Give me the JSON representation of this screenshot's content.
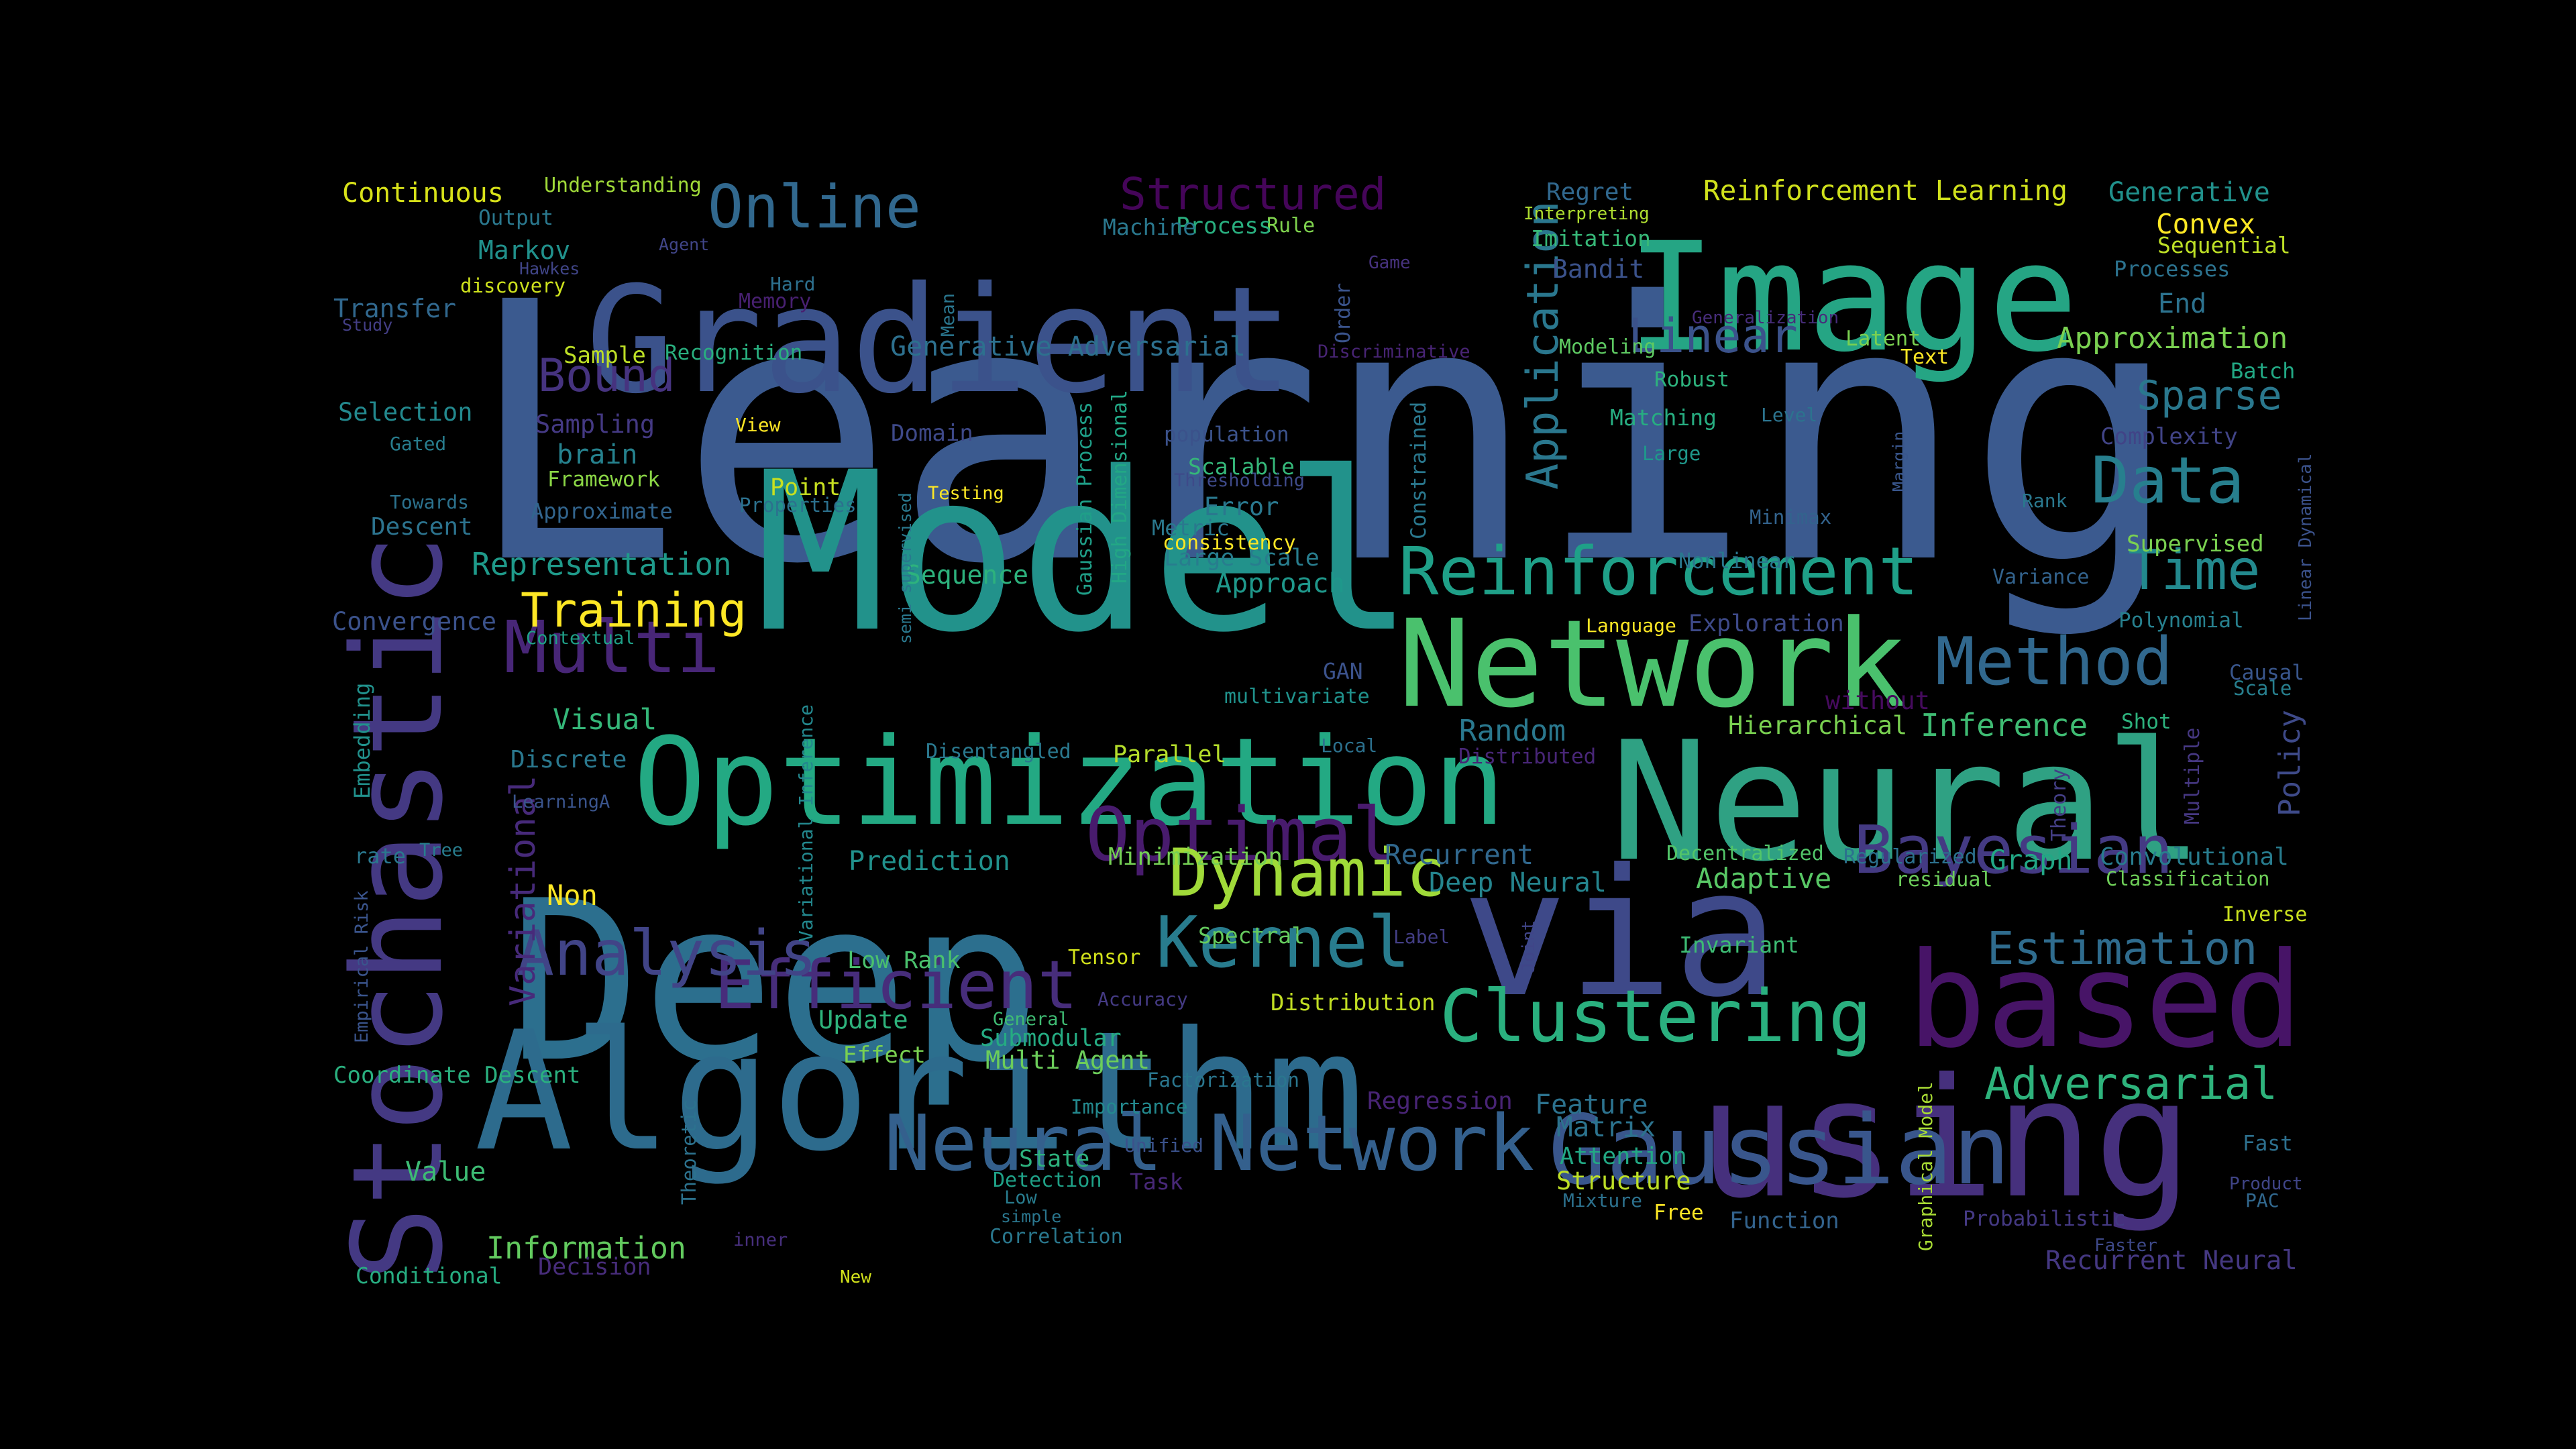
{
  "words": [
    {
      "text": "Learning",
      "color": "#3b5a8f"
    },
    {
      "text": "Model",
      "color": "#22928b"
    },
    {
      "text": "Neural",
      "color": "#2fa183"
    },
    {
      "text": "Deep",
      "color": "#2c6f8e"
    },
    {
      "text": "Algorithm",
      "color": "#2d6b8d"
    },
    {
      "text": "via",
      "color": "#3e4989"
    },
    {
      "text": "Gradient",
      "color": "#3b528b"
    },
    {
      "text": "Image",
      "color": "#25a584"
    },
    {
      "text": "Stochastic",
      "color": "#443983"
    },
    {
      "text": "using",
      "color": "#46307d"
    },
    {
      "text": "based",
      "color": "#471467"
    },
    {
      "text": "Optimization",
      "color": "#23a983"
    },
    {
      "text": "Network",
      "color": "#4ac16d"
    },
    {
      "text": "Gaussian",
      "color": "#39568c"
    },
    {
      "text": "Neural Network",
      "color": "#34608d"
    },
    {
      "text": "Reinforcement",
      "color": "#1fa088"
    },
    {
      "text": "Clustering",
      "color": "#2ab07f"
    },
    {
      "text": "Kernel",
      "color": "#287c8e"
    },
    {
      "text": "Optimal",
      "color": "#481b6d"
    },
    {
      "text": "Efficient",
      "color": "#472d7b"
    },
    {
      "text": "Dynamic",
      "color": "#a0da39"
    },
    {
      "text": "Analysis",
      "color": "#414487"
    },
    {
      "text": "Multi",
      "color": "#482677"
    },
    {
      "text": "Bayesian",
      "color": "#443a83"
    },
    {
      "text": "Data",
      "color": "#277f8e"
    },
    {
      "text": "Method",
      "color": "#31688e"
    },
    {
      "text": "Time",
      "color": "#23898e"
    },
    {
      "text": "Structured",
      "color": "#450559"
    },
    {
      "text": "Online",
      "color": "#31688e"
    },
    {
      "text": "Linear",
      "color": "#3b528b"
    },
    {
      "text": "Application",
      "color": "#2a778e"
    },
    {
      "text": "Adversarial",
      "color": "#2eb37c"
    },
    {
      "text": "Estimation",
      "color": "#2f6c8e"
    },
    {
      "text": "Sparse",
      "color": "#2a788e"
    },
    {
      "text": "Training",
      "color": "#fde725"
    },
    {
      "text": "Bound",
      "color": "#46337f"
    },
    {
      "text": "Variational",
      "color": "#472a7a"
    },
    {
      "text": "Continuous",
      "color": "#d8e219"
    },
    {
      "text": "Reinforcement Learning",
      "color": "#d0e11c"
    },
    {
      "text": "Generative",
      "color": "#21918c"
    },
    {
      "text": "Convex",
      "color": "#fde725"
    },
    {
      "text": "Sequential",
      "color": "#bddf26"
    },
    {
      "text": "Processes",
      "color": "#2c728e"
    },
    {
      "text": "End",
      "color": "#2c728e"
    },
    {
      "text": "Approximation",
      "color": "#7ad151"
    },
    {
      "text": "Batch",
      "color": "#22a884"
    },
    {
      "text": "Complexity",
      "color": "#414487"
    },
    {
      "text": "Generative Adversarial",
      "color": "#2d708e"
    },
    {
      "text": "Representation",
      "color": "#1f9a8a"
    },
    {
      "text": "Convergence",
      "color": "#3b528b"
    },
    {
      "text": "Visual",
      "color": "#35b779"
    },
    {
      "text": "Discrete",
      "color": "#2a788e"
    },
    {
      "text": "Embedding",
      "color": "#21918c"
    },
    {
      "text": "Sequence",
      "color": "#2db27d"
    },
    {
      "text": "Approach",
      "color": "#1f988b"
    },
    {
      "text": "Large Scale",
      "color": "#287d8e"
    },
    {
      "text": "Inference",
      "color": "#3fbc73"
    },
    {
      "text": "Hierarchical",
      "color": "#7ad151"
    },
    {
      "text": "Random",
      "color": "#2a788e"
    },
    {
      "text": "Policy",
      "color": "#3e4a89"
    },
    {
      "text": "Theory",
      "color": "#433e85"
    },
    {
      "text": "Multiple",
      "color": "#453781"
    },
    {
      "text": "Graph",
      "color": "#22a785"
    },
    {
      "text": "Convolutional",
      "color": "#287c8e"
    },
    {
      "text": "Regularized",
      "color": "#2c718e"
    },
    {
      "text": "Adaptive",
      "color": "#58c765"
    },
    {
      "text": "Invariant",
      "color": "#3dbc74"
    },
    {
      "text": "Deep Neural",
      "color": "#25858e"
    },
    {
      "text": "Recurrent",
      "color": "#31688e"
    },
    {
      "text": "Prediction",
      "color": "#21918c"
    },
    {
      "text": "Minimization",
      "color": "#75d054"
    },
    {
      "text": "Parallel",
      "color": "#b5de2b"
    },
    {
      "text": "Disentangled",
      "color": "#2a788e"
    },
    {
      "text": "Non",
      "color": "#fde725"
    },
    {
      "text": "Low Rank",
      "color": "#4ac16d"
    },
    {
      "text": "Tensor",
      "color": "#d2e21b"
    },
    {
      "text": "Spectral",
      "color": "#65cb5e"
    },
    {
      "text": "Distribution",
      "color": "#c2df23"
    },
    {
      "text": "Update",
      "color": "#2eb37c"
    },
    {
      "text": "Effect",
      "color": "#7ad151"
    },
    {
      "text": "Submodular",
      "color": "#25ab82"
    },
    {
      "text": "Multi Agent",
      "color": "#6ccd5a"
    },
    {
      "text": "Coordinate Descent",
      "color": "#2ab07f"
    },
    {
      "text": "Value",
      "color": "#3dbc74"
    },
    {
      "text": "Information",
      "color": "#63cb5f"
    },
    {
      "text": "Decision",
      "color": "#472c7a"
    },
    {
      "text": "Conditional",
      "color": "#27ad81"
    },
    {
      "text": "Empirical Risk",
      "color": "#3a548c"
    },
    {
      "text": "Variational Inference",
      "color": "#23888e"
    },
    {
      "text": "Theoretic",
      "color": "#2c728e"
    },
    {
      "text": "State",
      "color": "#2db27d"
    },
    {
      "text": "Detection",
      "color": "#1fa187"
    },
    {
      "text": "Low",
      "color": "#287c8e"
    },
    {
      "text": "simple",
      "color": "#2a768e"
    },
    {
      "text": "Correlation",
      "color": "#2a788e"
    },
    {
      "text": "inner",
      "color": "#472f7d"
    },
    {
      "text": "New",
      "color": "#d2e21b"
    },
    {
      "text": "Unified",
      "color": "#3b528b"
    },
    {
      "text": "Task",
      "color": "#482878"
    },
    {
      "text": "Importance",
      "color": "#23898e"
    },
    {
      "text": "Factorization",
      "color": "#2a768e"
    },
    {
      "text": "Accuracy",
      "color": "#443a83"
    },
    {
      "text": "General",
      "color": "#3fbc73"
    },
    {
      "text": "Label",
      "color": "#433e85"
    },
    {
      "text": "Joint",
      "color": "#404588"
    },
    {
      "text": "Regression",
      "color": "#482475"
    },
    {
      "text": "Feature",
      "color": "#2c728e"
    },
    {
      "text": "Matrix",
      "color": "#2c738e"
    },
    {
      "text": "Attention",
      "color": "#22a884"
    },
    {
      "text": "Structure",
      "color": "#bddf26"
    },
    {
      "text": "Mixture",
      "color": "#2c718e"
    },
    {
      "text": "Free",
      "color": "#fde725"
    },
    {
      "text": "Function",
      "color": "#33638d"
    },
    {
      "text": "Graphical Model",
      "color": "#a8db34"
    },
    {
      "text": "Probabilistic",
      "color": "#443983"
    },
    {
      "text": "Faster",
      "color": "#3e4989"
    },
    {
      "text": "Recurrent Neural",
      "color": "#453882"
    },
    {
      "text": "Fast",
      "color": "#2d708e"
    },
    {
      "text": "Product",
      "color": "#404588"
    },
    {
      "text": "PAC",
      "color": "#31688e"
    },
    {
      "text": "Inverse",
      "color": "#cae11f"
    },
    {
      "text": "Classification",
      "color": "#6ece58"
    },
    {
      "text": "residual",
      "color": "#6ccd5a"
    },
    {
      "text": "Decentralized",
      "color": "#52c569"
    },
    {
      "text": "Distributed",
      "color": "#482677"
    },
    {
      "text": "Local",
      "color": "#2c718e"
    },
    {
      "text": "Shot",
      "color": "#2db27d"
    },
    {
      "text": "without",
      "color": "#460b5e"
    },
    {
      "text": "Causal",
      "color": "#39568c"
    },
    {
      "text": "Scale",
      "color": "#277f8e"
    },
    {
      "text": "GAN",
      "color": "#3b528b"
    },
    {
      "text": "multivariate",
      "color": "#20928c"
    },
    {
      "text": "Exploration",
      "color": "#3e4a89"
    },
    {
      "text": "Language",
      "color": "#fde725"
    },
    {
      "text": "Polynomial",
      "color": "#27808e"
    },
    {
      "text": "Variance",
      "color": "#33638d"
    },
    {
      "text": "Supervised",
      "color": "#7ad151"
    },
    {
      "text": "Linear Dynamical",
      "color": "#3b528b"
    },
    {
      "text": "Rank",
      "color": "#2a788e"
    },
    {
      "text": "Margin",
      "color": "#39568c"
    },
    {
      "text": "Minimax",
      "color": "#33638d"
    },
    {
      "text": "Nonlinear",
      "color": "#2a778e"
    },
    {
      "text": "Large",
      "color": "#1f988b"
    },
    {
      "text": "Level",
      "color": "#2c738e"
    },
    {
      "text": "Matching",
      "color": "#27ad81"
    },
    {
      "text": "Robust",
      "color": "#2db27d"
    },
    {
      "text": "Text",
      "color": "#fde725"
    },
    {
      "text": "Latent",
      "color": "#7ad151"
    },
    {
      "text": "Generalization",
      "color": "#472d7b"
    },
    {
      "text": "Modeling",
      "color": "#5ec962"
    },
    {
      "text": "Discriminative",
      "color": "#482475"
    },
    {
      "text": "Game",
      "color": "#46327e"
    },
    {
      "text": "Bandit",
      "color": "#3b528b"
    },
    {
      "text": "Imitation",
      "color": "#37b878"
    },
    {
      "text": "Interpreting",
      "color": "#addc30"
    },
    {
      "text": "Regret",
      "color": "#31688e"
    },
    {
      "text": "Order",
      "color": "#3a538b"
    },
    {
      "text": "Constrained",
      "color": "#2a788e"
    },
    {
      "text": "Rule",
      "color": "#7fd34e"
    },
    {
      "text": "Process",
      "color": "#29af7f"
    },
    {
      "text": "Machine",
      "color": "#2a788e"
    },
    {
      "text": "Mean",
      "color": "#2a768e"
    },
    {
      "text": "Understanding",
      "color": "#a0da39"
    },
    {
      "text": "Output",
      "color": "#2a788e"
    },
    {
      "text": "Markov",
      "color": "#21918c"
    },
    {
      "text": "Agent",
      "color": "#404588"
    },
    {
      "text": "Hawkes",
      "color": "#404588"
    },
    {
      "text": "Hard",
      "color": "#2d708e"
    },
    {
      "text": "Memory",
      "color": "#482071"
    },
    {
      "text": "discovery",
      "color": "#cde11d"
    },
    {
      "text": "Transfer",
      "color": "#31688e"
    },
    {
      "text": "Study",
      "color": "#433e85"
    },
    {
      "text": "Sample",
      "color": "#bddf26"
    },
    {
      "text": "Recognition",
      "color": "#29af7f"
    },
    {
      "text": "Selection",
      "color": "#23898e"
    },
    {
      "text": "Sampling",
      "color": "#443983"
    },
    {
      "text": "Gated",
      "color": "#287d8e"
    },
    {
      "text": "brain",
      "color": "#26828e"
    },
    {
      "text": "View",
      "color": "#fde725"
    },
    {
      "text": "Framework",
      "color": "#8bd646"
    },
    {
      "text": "Point",
      "color": "#c8e020"
    },
    {
      "text": "Properties",
      "color": "#2c718e"
    },
    {
      "text": "Approximate",
      "color": "#32658e"
    },
    {
      "text": "Towards",
      "color": "#2c728e"
    },
    {
      "text": "Descent",
      "color": "#2c738e"
    },
    {
      "text": "Domain",
      "color": "#3e4989"
    },
    {
      "text": "Gaussian Process",
      "color": "#1f9f88"
    },
    {
      "text": "High Dimensional",
      "color": "#22a785"
    },
    {
      "text": "population",
      "color": "#3b528b"
    },
    {
      "text": "Scalable",
      "color": "#35b779"
    },
    {
      "text": "Thresholding",
      "color": "#3e4a89"
    },
    {
      "text": "Error",
      "color": "#2a788e"
    },
    {
      "text": "Metric",
      "color": "#2a788e"
    },
    {
      "text": "consistency",
      "color": "#fde725"
    },
    {
      "text": "Testing",
      "color": "#fde725"
    },
    {
      "text": "Contextual",
      "color": "#1fa088"
    },
    {
      "text": "LearningA",
      "color": "#3a548c"
    },
    {
      "text": "rate",
      "color": "#2a788e"
    },
    {
      "text": "Tree",
      "color": "#287d8e"
    },
    {
      "text": "semi supervised",
      "color": "#2a788e"
    }
  ]
}
